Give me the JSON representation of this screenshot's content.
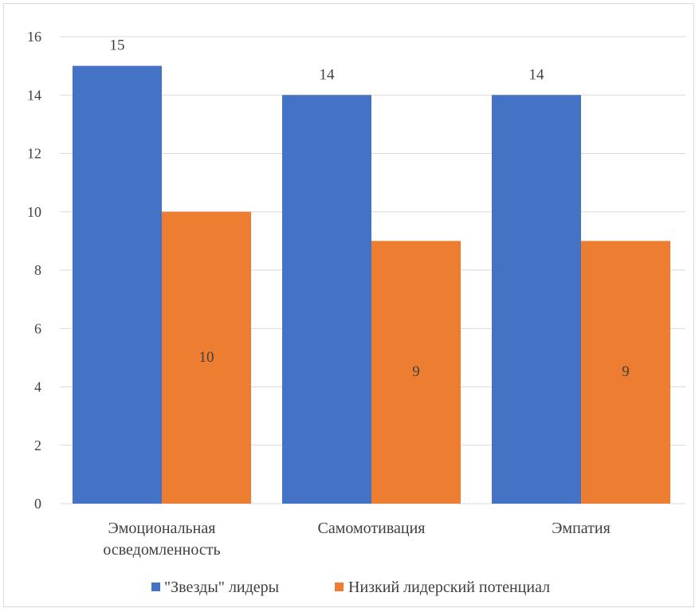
{
  "chart_data": {
    "type": "bar",
    "categories": [
      [
        "Эмоциональная",
        "осведомленность"
      ],
      [
        "Самомотивация"
      ],
      [
        "Эмпатия"
      ]
    ],
    "series": [
      {
        "name": "\"Звезды\" лидеры",
        "values": [
          15,
          14,
          14
        ],
        "color": "#4472c4"
      },
      {
        "name": "Низкий лидерский потенциал",
        "values": [
          10,
          9,
          9
        ],
        "color": "#ed7d31"
      }
    ],
    "ylim": [
      0,
      16
    ],
    "yticks": [
      0,
      2,
      4,
      6,
      8,
      10,
      12,
      14,
      16
    ],
    "grid": true,
    "legend": "bottom",
    "colors": {
      "gridline": "#d9d9d9",
      "text": "#404040",
      "border": "#d9d9d9"
    }
  }
}
